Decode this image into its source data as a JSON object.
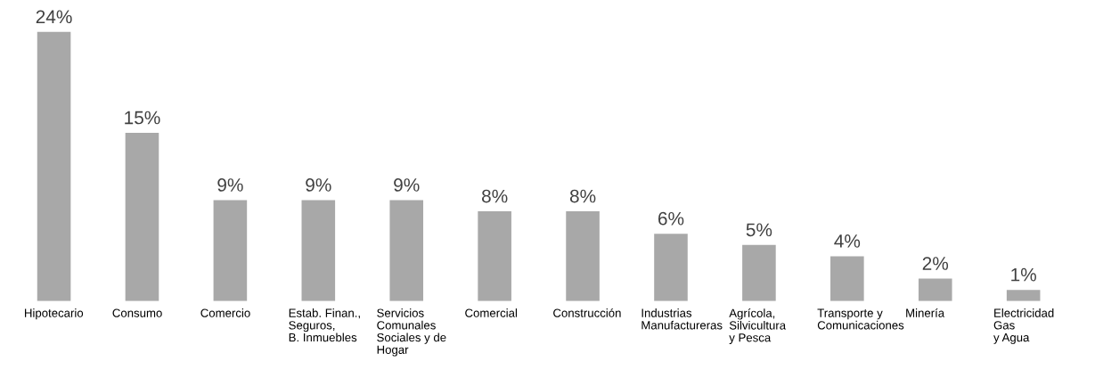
{
  "chart_data": {
    "type": "bar",
    "categories": [
      "Hipotecario",
      "Consumo",
      "Comercio",
      "Estab. Finan.,\nSeguros,\nB. Inmuebles",
      "Servicios\nComunales\nSociales y de\nHogar",
      "Comercial",
      "Construcción",
      "Industrias\nManufactureras",
      "Agrícola,\nSilvicultura\ny Pesca",
      "Transporte y\nComunicaciones",
      "Minería",
      "Electricidad\nGas\ny Agua"
    ],
    "values": [
      24,
      15,
      9,
      9,
      9,
      8,
      8,
      6,
      5,
      4,
      2,
      1
    ],
    "value_labels": [
      "24%",
      "15%",
      "9%",
      "9%",
      "9%",
      "8%",
      "8%",
      "6%",
      "5%",
      "4%",
      "2%",
      "1%"
    ],
    "color": "#a8a8a8",
    "grid": false,
    "legend": false
  }
}
